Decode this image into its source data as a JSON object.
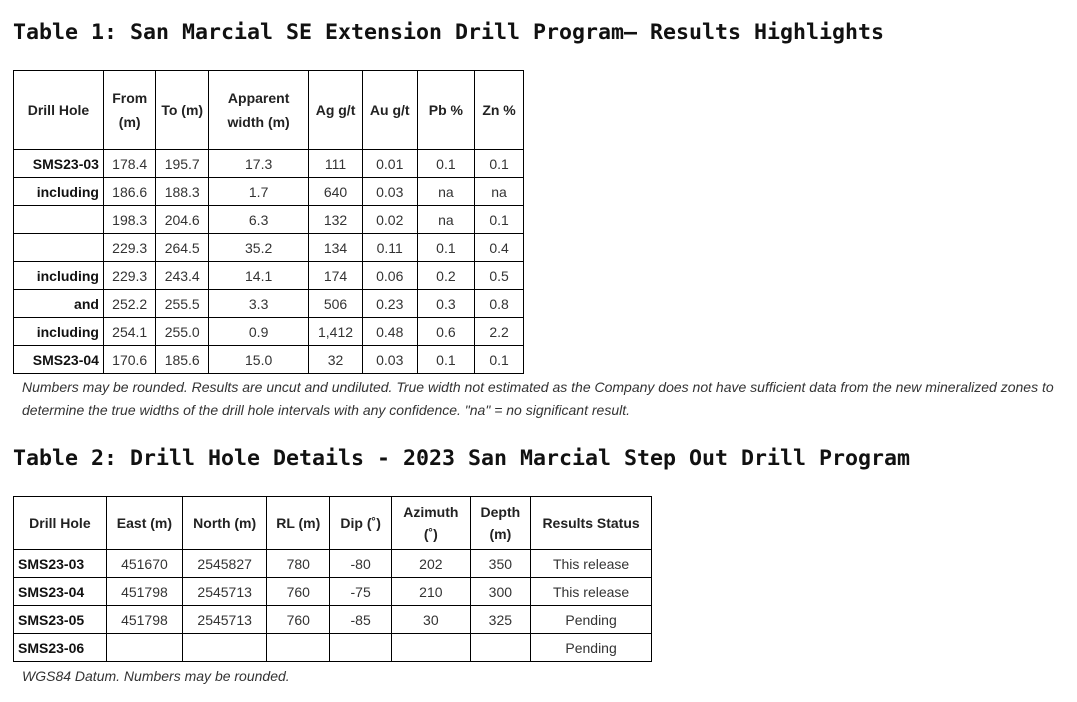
{
  "table1": {
    "title": "Table 1: San Marcial SE Extension Drill Program– Results Highlights",
    "headers": [
      "Drill Hole",
      "From (m)",
      "To (m)",
      "Apparent width (m)",
      "Ag g/t",
      "Au g/t",
      "Pb %",
      "Zn %"
    ],
    "rows": [
      [
        "SMS23-03",
        "178.4",
        "195.7",
        "17.3",
        "111",
        "0.01",
        "0.1",
        "0.1"
      ],
      [
        "including",
        "186.6",
        "188.3",
        "1.7",
        "640",
        "0.03",
        "na",
        "na"
      ],
      [
        "",
        "198.3",
        "204.6",
        "6.3",
        "132",
        "0.02",
        "na",
        "0.1"
      ],
      [
        "",
        "229.3",
        "264.5",
        "35.2",
        "134",
        "0.11",
        "0.1",
        "0.4"
      ],
      [
        "including",
        "229.3",
        "243.4",
        "14.1",
        "174",
        "0.06",
        "0.2",
        "0.5"
      ],
      [
        "and",
        "252.2",
        "255.5",
        "3.3",
        "506",
        "0.23",
        "0.3",
        "0.8"
      ],
      [
        "including",
        "254.1",
        "255.0",
        "0.9",
        "1,412",
        "0.48",
        "0.6",
        "2.2"
      ],
      [
        "SMS23-04",
        "170.6",
        "185.6",
        "15.0",
        "32",
        "0.03",
        "0.1",
        "0.1"
      ]
    ],
    "note": "Numbers may be rounded. Results are uncut and undiluted. True width not estimated as the Company does not have sufficient data from the new mineralized zones to determine the true widths of the drill hole intervals with any confidence. \"na\" = no significant result."
  },
  "table2": {
    "title": "Table 2: Drill Hole Details - 2023 San Marcial Step Out Drill Program",
    "headers": [
      "Drill Hole",
      "East (m)",
      "North (m)",
      "RL (m)",
      "Dip (˚)",
      "Azimuth (˚)",
      "Depth (m)",
      "Results Status"
    ],
    "rows": [
      [
        "SMS23-03",
        "451670",
        "2545827",
        "780",
        "-80",
        "202",
        "350",
        "This release"
      ],
      [
        "SMS23-04",
        "451798",
        "2545713",
        "760",
        "-75",
        "210",
        "300",
        "This release"
      ],
      [
        "SMS23-05",
        "451798",
        "2545713",
        "760",
        "-85",
        "30",
        "325",
        "Pending"
      ],
      [
        "SMS23-06",
        "",
        "",
        "",
        "",
        "",
        "",
        "Pending"
      ]
    ],
    "note": "WGS84 Datum. Numbers may be rounded."
  }
}
